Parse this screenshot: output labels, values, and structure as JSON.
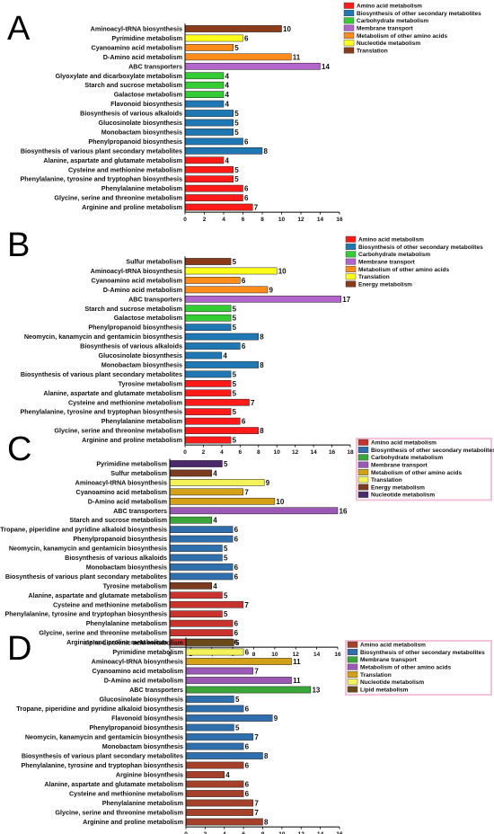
{
  "chart_data": [
    {
      "panel": "A",
      "type": "bar",
      "orientation": "horizontal",
      "xlim": [
        0,
        16
      ],
      "xticks": [
        0,
        2,
        4,
        6,
        8,
        10,
        12,
        14,
        16
      ],
      "legend": [
        {
          "name": "Amino acid metabolism",
          "color": "#ff1a1a"
        },
        {
          "name": "Biosynthesis of other secondary metabolites",
          "color": "#1f77b4"
        },
        {
          "name": "Carbohydrate metabolism",
          "color": "#33cc33"
        },
        {
          "name": "Membrane transport",
          "color": "#b266cc"
        },
        {
          "name": "Metabolism of other amino acids",
          "color": "#ff8c1a"
        },
        {
          "name": "Nucleotide metabolism",
          "color": "#ffff1a"
        },
        {
          "name": "Translation",
          "color": "#8b3a1a"
        }
      ],
      "bars": [
        {
          "label": "Aminoacyl-tRNA biosynthesis",
          "value": 10,
          "group": "Translation"
        },
        {
          "label": "Pyrimidine metabolism",
          "value": 6,
          "group": "Nucleotide metabolism"
        },
        {
          "label": "Cyanoamino acid metabolism",
          "value": 5,
          "group": "Metabolism of other amino acids"
        },
        {
          "label": "D-Amino acid metabolism",
          "value": 11,
          "group": "Metabolism of other amino acids"
        },
        {
          "label": "ABC transporters",
          "value": 14,
          "group": "Membrane transport"
        },
        {
          "label": "Glyoxylate and dicarboxylate metabolism",
          "value": 4,
          "group": "Carbohydrate metabolism"
        },
        {
          "label": "Starch and sucrose metabolism",
          "value": 4,
          "group": "Carbohydrate metabolism"
        },
        {
          "label": "Galactose metabolism",
          "value": 4,
          "group": "Carbohydrate metabolism"
        },
        {
          "label": "Flavonoid biosynthesis",
          "value": 4,
          "group": "Biosynthesis of other secondary metabolites"
        },
        {
          "label": "Biosynthesis of various alkaloids",
          "value": 5,
          "group": "Biosynthesis of other secondary metabolites"
        },
        {
          "label": "Glucosinolate biosynthesis",
          "value": 5,
          "group": "Biosynthesis of other secondary metabolites"
        },
        {
          "label": "Monobactam biosynthesis",
          "value": 5,
          "group": "Biosynthesis of other secondary metabolites"
        },
        {
          "label": "Phenylpropanoid biosynthesis",
          "value": 6,
          "group": "Biosynthesis of other secondary metabolites"
        },
        {
          "label": "Biosynthesis of various plant secondary metabolites",
          "value": 8,
          "group": "Biosynthesis of other secondary metabolites"
        },
        {
          "label": "Alanine, aspartate and glutamate metabolism",
          "value": 4,
          "group": "Amino acid metabolism"
        },
        {
          "label": "Cysteine and methionine metabolism",
          "value": 5,
          "group": "Amino acid metabolism"
        },
        {
          "label": "Phenylalanine, tyrosine and tryptophan biosynthesis",
          "value": 5,
          "group": "Amino acid metabolism"
        },
        {
          "label": "Phenylalanine metabolism",
          "value": 6,
          "group": "Amino acid metabolism"
        },
        {
          "label": "Glycine, serine and threonine metabolism",
          "value": 6,
          "group": "Amino acid metabolism"
        },
        {
          "label": "Arginine and proline metabolism",
          "value": 7,
          "group": "Amino acid metabolism"
        }
      ]
    },
    {
      "panel": "B",
      "type": "bar",
      "orientation": "horizontal",
      "xlim": [
        0,
        18
      ],
      "xticks": [
        0,
        2,
        4,
        6,
        8,
        10,
        12,
        14,
        16,
        18
      ],
      "legend": [
        {
          "name": "Amino acid metabolism",
          "color": "#ff1a1a"
        },
        {
          "name": "Biosynthesis of other secondary metabolites",
          "color": "#1f77b4"
        },
        {
          "name": "Carbohydrate metabolism",
          "color": "#33cc33"
        },
        {
          "name": "Membrane transport",
          "color": "#b266cc"
        },
        {
          "name": "Metabolism of other amino acids",
          "color": "#ff8c1a"
        },
        {
          "name": "Translation",
          "color": "#ffff1a"
        },
        {
          "name": "Energy metabolism",
          "color": "#8b3a1a"
        }
      ],
      "bars": [
        {
          "label": "Sulfur metabolism",
          "value": 5,
          "group": "Energy metabolism"
        },
        {
          "label": "Aminoacyl-tRNA biosynthesis",
          "value": 10,
          "group": "Translation"
        },
        {
          "label": "Cyanoamino acid metabolism",
          "value": 6,
          "group": "Metabolism of other amino acids"
        },
        {
          "label": "D-Amino acid metabolism",
          "value": 9,
          "group": "Metabolism of other amino acids"
        },
        {
          "label": "ABC transporters",
          "value": 17,
          "group": "Membrane transport"
        },
        {
          "label": "Starch and sucrose metabolism",
          "value": 5,
          "group": "Carbohydrate metabolism"
        },
        {
          "label": "Galactose metabolism",
          "value": 5,
          "group": "Carbohydrate metabolism"
        },
        {
          "label": "Phenylpropanoid biosynthesis",
          "value": 5,
          "group": "Biosynthesis of other secondary metabolites"
        },
        {
          "label": "Neomycin, kanamycin and gentamicin biosynthesis",
          "value": 8,
          "group": "Biosynthesis of other secondary metabolites"
        },
        {
          "label": "Biosynthesis of various alkaloids",
          "value": 6,
          "group": "Biosynthesis of other secondary metabolites"
        },
        {
          "label": "Glucosinolate biosynthesis",
          "value": 4,
          "group": "Biosynthesis of other secondary metabolites"
        },
        {
          "label": "Monobactam biosynthesis",
          "value": 8,
          "group": "Biosynthesis of other secondary metabolites"
        },
        {
          "label": "Biosynthesis of various plant secondary metabolites",
          "value": 5,
          "group": "Biosynthesis of other secondary metabolites"
        },
        {
          "label": "Tyrosine metabolism",
          "value": 5,
          "group": "Amino acid metabolism"
        },
        {
          "label": "Alanine, aspartate and glutamate metabolism",
          "value": 5,
          "group": "Amino acid metabolism"
        },
        {
          "label": "Cysteine and methionine metabolism",
          "value": 7,
          "group": "Amino acid metabolism"
        },
        {
          "label": "Phenylalanine, tyrosine and tryptophan biosynthesis",
          "value": 5,
          "group": "Amino acid metabolism"
        },
        {
          "label": "Phenylalanine metabolism",
          "value": 6,
          "group": "Amino acid metabolism"
        },
        {
          "label": "Glycine, serine and threonine metabolism",
          "value": 8,
          "group": "Amino acid metabolism"
        },
        {
          "label": "Arginine and proline metabolism",
          "value": 5,
          "group": "Amino acid metabolism"
        }
      ]
    },
    {
      "panel": "C",
      "type": "bar",
      "orientation": "horizontal",
      "xlim": [
        0,
        16
      ],
      "xticks": [
        0,
        2,
        4,
        6,
        8,
        10,
        12,
        14,
        16
      ],
      "legend": [
        {
          "name": "Amino acid metabolism",
          "color": "#c8332e"
        },
        {
          "name": "Biosynthesis of other secondary metabolites",
          "color": "#2f6fad"
        },
        {
          "name": "Carbohydrate metabolism",
          "color": "#3aa63a"
        },
        {
          "name": "Membrane transport",
          "color": "#9b59b6"
        },
        {
          "name": "Metabolism of other amino acids",
          "color": "#d4a017"
        },
        {
          "name": "Translation",
          "color": "#f2f25a"
        },
        {
          "name": "Energy metabolism",
          "color": "#7a3b1e"
        },
        {
          "name": "Nucleotide metabolism",
          "color": "#4b2a6b"
        }
      ],
      "bars": [
        {
          "label": "Pyrimidine metabolism",
          "value": 5,
          "group": "Nucleotide metabolism"
        },
        {
          "label": "Sulfur metabolism",
          "value": 4,
          "group": "Energy metabolism"
        },
        {
          "label": "Aminoacyl-tRNA biosynthesis",
          "value": 9,
          "group": "Translation"
        },
        {
          "label": "Cyanoamino acid metabolism",
          "value": 7,
          "group": "Metabolism of other amino acids"
        },
        {
          "label": "D-Amino acid metabolism",
          "value": 10,
          "group": "Metabolism of other amino acids"
        },
        {
          "label": "ABC transporters",
          "value": 16,
          "group": "Membrane transport"
        },
        {
          "label": "Starch and sucrose metabolism",
          "value": 4,
          "group": "Carbohydrate metabolism"
        },
        {
          "label": "Tropane, piperidine and pyridine alkaloid biosynthesis",
          "value": 6,
          "group": "Biosynthesis of other secondary metabolites"
        },
        {
          "label": "Phenylpropanoid biosynthesis",
          "value": 6,
          "group": "Biosynthesis of other secondary metabolites"
        },
        {
          "label": "Neomycin, kanamycin and gentamicin biosynthesis",
          "value": 5,
          "group": "Biosynthesis of other secondary metabolites"
        },
        {
          "label": "Biosynthesis of various alkaloids",
          "value": 5,
          "group": "Biosynthesis of other secondary metabolites"
        },
        {
          "label": "Monobactam biosynthesis",
          "value": 6,
          "group": "Biosynthesis of other secondary metabolites"
        },
        {
          "label": "Biosynthesis of various plant secondary metabolites",
          "value": 6,
          "group": "Biosynthesis of other secondary metabolites"
        },
        {
          "label": "Tyrosine metabolism",
          "value": 4,
          "group": "Energy metabolism"
        },
        {
          "label": "Alanine, aspartate and glutamate metabolism",
          "value": 5,
          "group": "Amino acid metabolism"
        },
        {
          "label": "Cysteine and methionine metabolism",
          "value": 7,
          "group": "Amino acid metabolism"
        },
        {
          "label": "Phenylalanine, tyrosine and tryptophan biosynthesis",
          "value": 5,
          "group": "Amino acid metabolism"
        },
        {
          "label": "Phenylalanine metabolism",
          "value": 6,
          "group": "Amino acid metabolism"
        },
        {
          "label": "Glycine, serine and threonine metabolism",
          "value": 6,
          "group": "Amino acid metabolism"
        },
        {
          "label": "Arginine and proline metabolism",
          "value": 6,
          "group": "Amino acid metabolism"
        }
      ]
    },
    {
      "panel": "D",
      "type": "bar",
      "orientation": "horizontal",
      "xlim": [
        0,
        16
      ],
      "xticks": [
        0,
        2,
        4,
        6,
        8,
        10,
        12,
        14,
        16
      ],
      "legend": [
        {
          "name": "Amino acid metabolism",
          "color": "#a5402a"
        },
        {
          "name": "Biosynthesis of other secondary metabolites",
          "color": "#2f6fad"
        },
        {
          "name": "Membrane transport",
          "color": "#3aa63a"
        },
        {
          "name": "Metabolism of other amino acids",
          "color": "#9b59b6"
        },
        {
          "name": "Translation",
          "color": "#d4a017"
        },
        {
          "name": "Nucleotide metabolism",
          "color": "#f2f25a"
        },
        {
          "name": "Lipid metabolism",
          "color": "#6b4a1a"
        }
      ],
      "bars": [
        {
          "label": "alpha-Linolenic acid metabolism",
          "value": 5,
          "group": "Lipid metabolism"
        },
        {
          "label": "Pyrimidine metabolism",
          "value": 6,
          "group": "Nucleotide metabolism"
        },
        {
          "label": "Aminoacyl-tRNA biosynthesis",
          "value": 11,
          "group": "Translation"
        },
        {
          "label": "Cyanoamino acid metabolism",
          "value": 7,
          "group": "Metabolism of other amino acids"
        },
        {
          "label": "D-Amino acid metabolism",
          "value": 11,
          "group": "Metabolism of other amino acids"
        },
        {
          "label": "ABC transporters",
          "value": 13,
          "group": "Membrane transport"
        },
        {
          "label": "Glucosinolate biosynthesis",
          "value": 5,
          "group": "Biosynthesis of other secondary metabolites"
        },
        {
          "label": "Tropane, piperidine and pyridine alkaloid biosynthesis",
          "value": 6,
          "group": "Biosynthesis of other secondary metabolites"
        },
        {
          "label": "Flavonoid biosynthesis",
          "value": 9,
          "group": "Biosynthesis of other secondary metabolites"
        },
        {
          "label": "Phenylpropanoid biosynthesis",
          "value": 5,
          "group": "Biosynthesis of other secondary metabolites"
        },
        {
          "label": "Neomycin, kanamycin and gentamicin biosynthesis",
          "value": 7,
          "group": "Biosynthesis of other secondary metabolites"
        },
        {
          "label": "Monobactam biosynthesis",
          "value": 6,
          "group": "Biosynthesis of other secondary metabolites"
        },
        {
          "label": "Biosynthesis of various plant secondary metabolites",
          "value": 8,
          "group": "Biosynthesis of other secondary metabolites"
        },
        {
          "label": "Phenylalanine, tyrosine and tryptophan biosynthesis",
          "value": 6,
          "group": "Amino acid metabolism"
        },
        {
          "label": "Arginine biosynthesis",
          "value": 4,
          "group": "Amino acid metabolism"
        },
        {
          "label": "Alanine, aspartate and glutamate metabolism",
          "value": 6,
          "group": "Amino acid metabolism"
        },
        {
          "label": "Cysteine and methionine metabolism",
          "value": 6,
          "group": "Amino acid metabolism"
        },
        {
          "label": "Phenylalanine metabolism",
          "value": 7,
          "group": "Amino acid metabolism"
        },
        {
          "label": "Glycine, serine and threonine metabolism",
          "value": 7,
          "group": "Amino acid metabolism"
        },
        {
          "label": "Arginine and proline metabolism",
          "value": 8,
          "group": "Amino acid metabolism"
        }
      ]
    }
  ]
}
